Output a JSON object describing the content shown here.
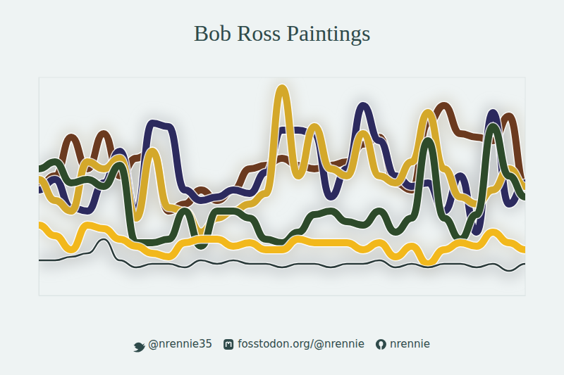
{
  "chart_data": {
    "type": "line",
    "title": "Bob Ross Paintings",
    "annotations": [
      "@nrennie35",
      "fosstodon.org/@nrennie",
      "nrennie"
    ],
    "x": [
      1,
      2,
      3,
      4,
      5,
      6,
      7,
      8,
      9,
      10,
      11,
      12,
      13,
      14,
      15,
      16,
      17,
      18,
      19,
      20,
      21,
      22,
      23,
      24,
      25,
      26,
      27,
      28,
      29,
      30,
      31
    ],
    "xlim": [
      1,
      31
    ],
    "ylim": [
      0,
      310
    ],
    "xticks": [],
    "yticks": [],
    "tick_labels": false,
    "grid": false,
    "series": [
      {
        "color": "#6b3a1f",
        "values": [
          155,
          170,
          225,
          180,
          230,
          170,
          195,
          205,
          120,
          130,
          150,
          135,
          150,
          180,
          185,
          195,
          185,
          180,
          185,
          190,
          215,
          225,
          160,
          150,
          245,
          270,
          230,
          225,
          220,
          255,
          155
        ]
      },
      {
        "color": "#2c2a5e",
        "values": [
          150,
          165,
          125,
          120,
          160,
          205,
          120,
          245,
          240,
          150,
          135,
          140,
          150,
          145,
          175,
          235,
          235,
          230,
          140,
          180,
          270,
          220,
          170,
          155,
          160,
          120,
          170,
          90,
          260,
          130,
          160
        ]
      },
      {
        "color": "#d4a82a",
        "values": [
          165,
          135,
          120,
          190,
          180,
          195,
          110,
          205,
          125,
          120,
          90,
          110,
          120,
          130,
          145,
          295,
          170,
          240,
          180,
          170,
          230,
          170,
          160,
          190,
          260,
          180,
          140,
          130,
          150,
          180,
          155
        ]
      },
      {
        "color": "#2d4a2a",
        "values": [
          180,
          190,
          160,
          165,
          155,
          185,
          75,
          75,
          80,
          120,
          70,
          120,
          120,
          110,
          80,
          75,
          90,
          115,
          120,
          105,
          100,
          120,
          90,
          110,
          220,
          110,
          80,
          115,
          240,
          170,
          140
        ]
      },
      {
        "color": "#f2b81c",
        "values": [
          100,
          85,
          65,
          100,
          95,
          80,
          70,
          60,
          55,
          75,
          80,
          80,
          70,
          75,
          65,
          65,
          80,
          75,
          75,
          75,
          65,
          75,
          55,
          70,
          45,
          65,
          75,
          70,
          90,
          75,
          65
        ]
      },
      {
        "color": "#2a3a3a",
        "values": [
          50,
          50,
          55,
          60,
          80,
          50,
          40,
          45,
          45,
          40,
          50,
          45,
          50,
          45,
          45,
          40,
          45,
          45,
          40,
          45,
          45,
          50,
          40,
          45,
          40,
          45,
          45,
          40,
          45,
          35,
          45
        ]
      }
    ]
  }
}
